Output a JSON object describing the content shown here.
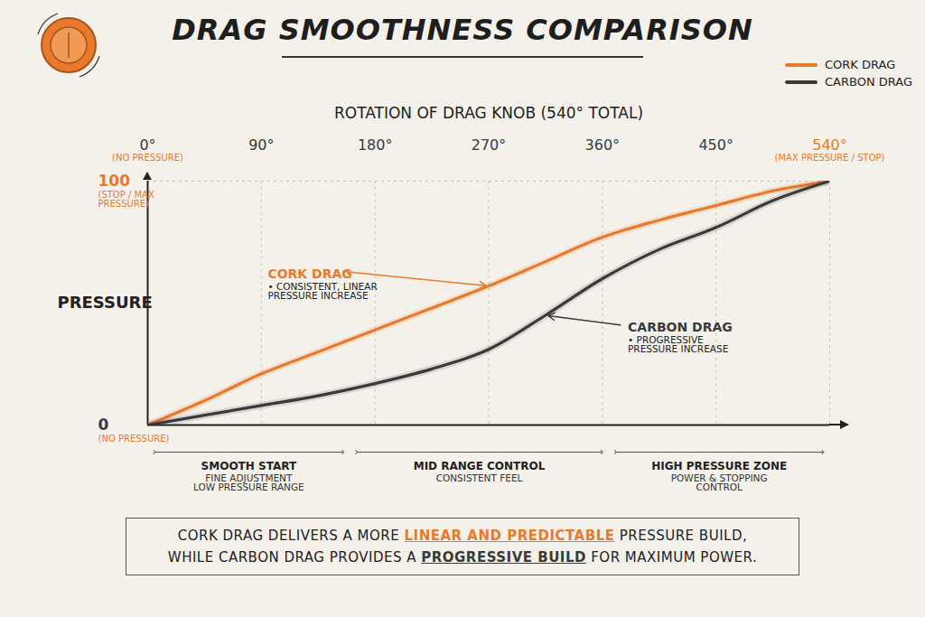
{
  "chart_data": {
    "type": "line",
    "title": "DRAG SMOOTHNESS COMPARISON",
    "x_label": "ROTATION OF DRAG KNOB (540° TOTAL)",
    "y_label": "PRESSURE",
    "x": [
      0,
      45,
      90,
      135,
      180,
      225,
      270,
      315,
      360,
      405,
      450,
      495,
      540
    ],
    "series": [
      {
        "name": "CORK DRAG",
        "color": "#e87a2c",
        "values": [
          0,
          10,
          21,
          30,
          39,
          48,
          57,
          67,
          77,
          84,
          90,
          96,
          100
        ]
      },
      {
        "name": "CARBON DRAG",
        "color": "#3a3a3a",
        "values": [
          0,
          4,
          8,
          12,
          17,
          23,
          31,
          45,
          60,
          72,
          81,
          92,
          100
        ]
      }
    ],
    "xlim": [
      0,
      540
    ],
    "xticks": [
      {
        "value": 0,
        "label": "0°"
      },
      {
        "value": 90,
        "label": "90°"
      },
      {
        "value": 180,
        "label": "180°"
      },
      {
        "value": 270,
        "label": "270°"
      },
      {
        "value": 360,
        "label": "360°"
      },
      {
        "value": 450,
        "label": "450°"
      },
      {
        "value": 540,
        "label": "540°"
      }
    ],
    "x_tick_notes": [
      {
        "value": 0,
        "label": "(NO PRESSURE)"
      },
      {
        "value": 540,
        "label": "(MAX PRESSURE / STOP)"
      }
    ],
    "ylim": [
      0,
      100
    ],
    "yticks": [
      0,
      100
    ],
    "y_tick_notes": [
      {
        "value": 100,
        "label": "(STOP / MAX PRESSURE)"
      },
      {
        "value": 0,
        "label": "(NO PRESSURE)"
      }
    ],
    "grid": true,
    "legend": "top-right",
    "annotations": [
      {
        "title": "CORK DRAG",
        "text": "• CONSISTENT, LINEAR PRESSURE INCREASE"
      },
      {
        "title": "CARBON DRAG",
        "text": "• PROGRESSIVE PRESSURE INCREASE"
      }
    ],
    "zones": [
      {
        "title": "SMOOTH START",
        "lines": [
          "FINE ADJUSTMENT",
          "LOW PRESSURE RANGE"
        ],
        "from": 0,
        "to": 160
      },
      {
        "title": "MID RANGE CONTROL",
        "lines": [
          "CONSISTENT FEEL"
        ],
        "from": 160,
        "to": 365
      },
      {
        "title": "HIGH PRESSURE ZONE",
        "lines": [
          "POWER & STOPPING",
          "CONTROL"
        ],
        "from": 365,
        "to": 540
      }
    ],
    "caption": "CORK DRAG DELIVERS A MORE LINEAR AND PREDICTABLE PRESSURE BUILD, WHILE CARBON DRAG PROVIDES A PROGRESSIVE BUILD FOR MAXIMUM POWER.",
    "caption_highlights": [
      "LINEAR AND PREDICTABLE",
      "PROGRESSIVE BUILD"
    ]
  }
}
